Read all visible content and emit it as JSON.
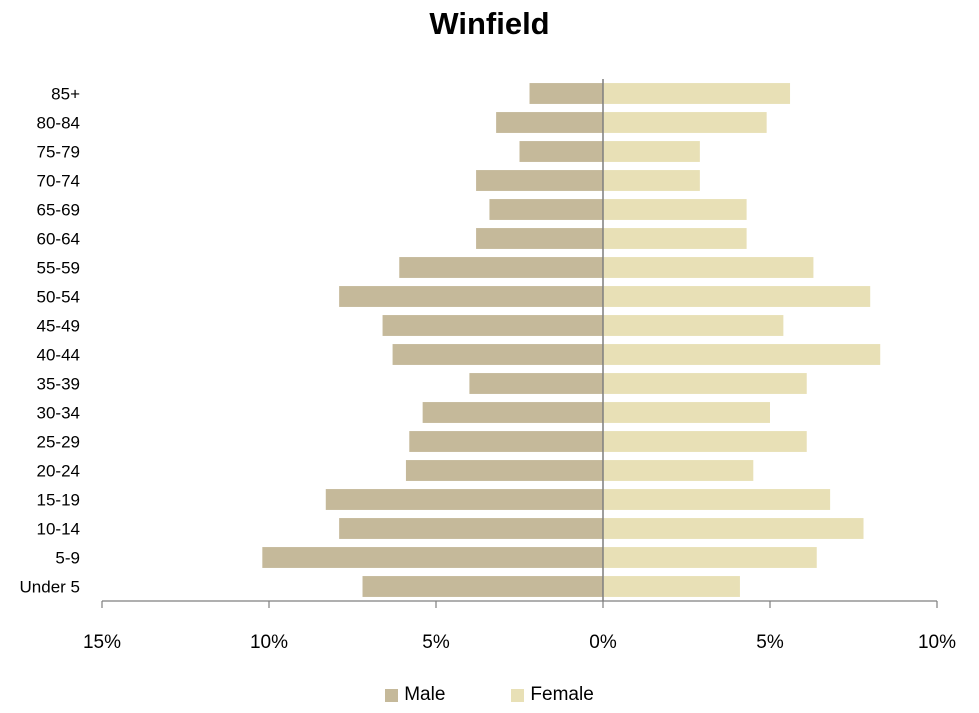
{
  "chart_data": {
    "type": "bar",
    "orientation": "horizontal",
    "title": "Winfield",
    "categories": [
      "Under 5",
      "5-9",
      "10-14",
      "15-19",
      "20-24",
      "25-29",
      "30-34",
      "35-39",
      "40-44",
      "45-49",
      "50-54",
      "55-59",
      "60-64",
      "65-69",
      "70-74",
      "75-79",
      "80-84",
      "85+"
    ],
    "series": [
      {
        "name": "Male",
        "color": "#c5b99a",
        "values": [
          7.2,
          10.2,
          7.9,
          8.3,
          5.9,
          5.8,
          5.4,
          4.0,
          6.3,
          6.6,
          7.9,
          6.1,
          3.8,
          3.4,
          3.8,
          2.5,
          3.2,
          2.2
        ]
      },
      {
        "name": "Female",
        "color": "#e8e0b6",
        "values": [
          4.1,
          6.4,
          7.8,
          6.8,
          4.5,
          6.1,
          5.0,
          6.1,
          8.3,
          5.4,
          8.0,
          6.3,
          4.3,
          4.3,
          2.9,
          2.9,
          4.9,
          5.6
        ]
      }
    ],
    "xlim": [
      -15,
      10
    ],
    "xticks": [
      -15,
      -10,
      -5,
      0,
      5,
      10
    ],
    "xtick_labels": [
      "15%",
      "10%",
      "5%",
      "0%",
      "5%",
      "10%"
    ],
    "grid": false,
    "legend_position": "bottom"
  }
}
